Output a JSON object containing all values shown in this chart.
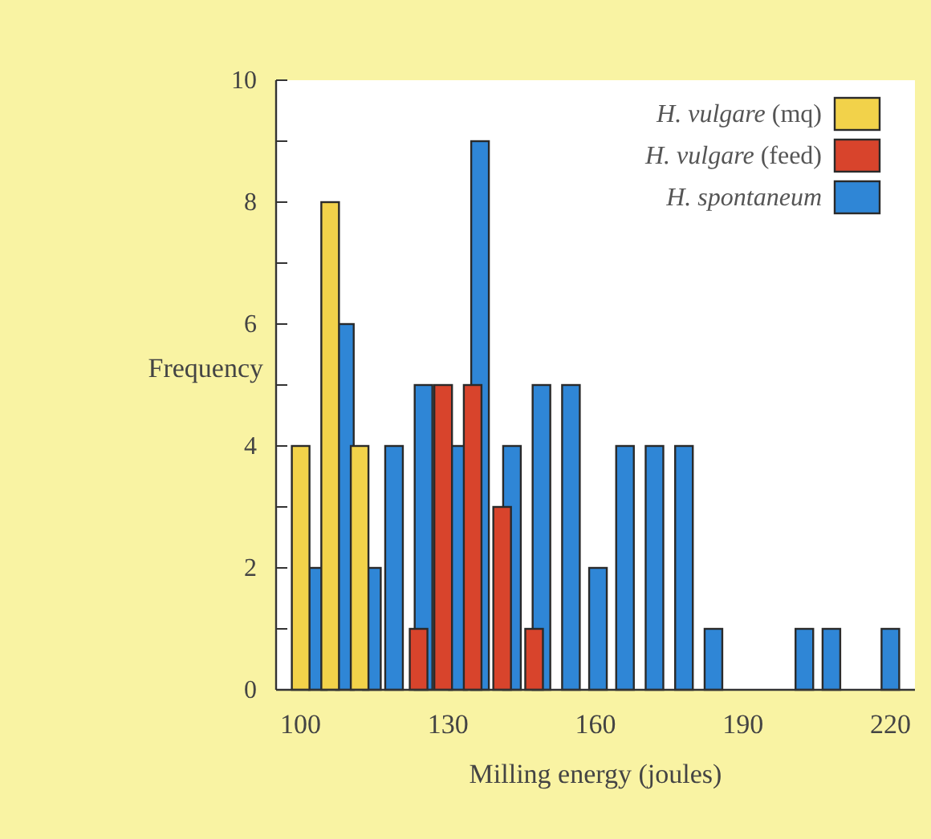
{
  "chart_data": {
    "type": "bar",
    "xlabel": "Milling energy (joules)",
    "ylabel": "Frequency",
    "xlim": [
      95,
      225
    ],
    "xticks": [
      100,
      130,
      160,
      190,
      220
    ],
    "ylim": [
      0,
      10
    ],
    "yticks": [
      0,
      {
        "value": 1,
        "label": null
      },
      2,
      {
        "value": 3,
        "label": null
      },
      4,
      {
        "value": 5,
        "label": null
      },
      6,
      {
        "value": 7,
        "label": null
      },
      8,
      {
        "value": 9,
        "label": null
      },
      10
    ],
    "legend": "top right",
    "grid": false,
    "series": [
      {
        "name": "H. vulgare (mq)",
        "color": "#f2d24a",
        "x": [
          100,
          106,
          112
        ],
        "values": [
          4,
          8,
          4
        ]
      },
      {
        "name": "H. vulgare (feed)",
        "color": "#d8442c",
        "x": [
          124,
          129,
          135,
          141,
          147.5
        ],
        "values": [
          1,
          5,
          5,
          3,
          1
        ]
      },
      {
        "name": "H. spontaneum",
        "color": "#2f86d6",
        "x": [
          103.5,
          109,
          114.5,
          119,
          125,
          132,
          136.5,
          143,
          149,
          155,
          160.5,
          166,
          172,
          178,
          184,
          202.5,
          208,
          220
        ],
        "values": [
          2,
          6,
          2,
          4,
          5,
          4,
          9,
          4,
          5,
          5,
          2,
          4,
          4,
          4,
          1,
          1,
          1,
          1
        ]
      }
    ]
  }
}
